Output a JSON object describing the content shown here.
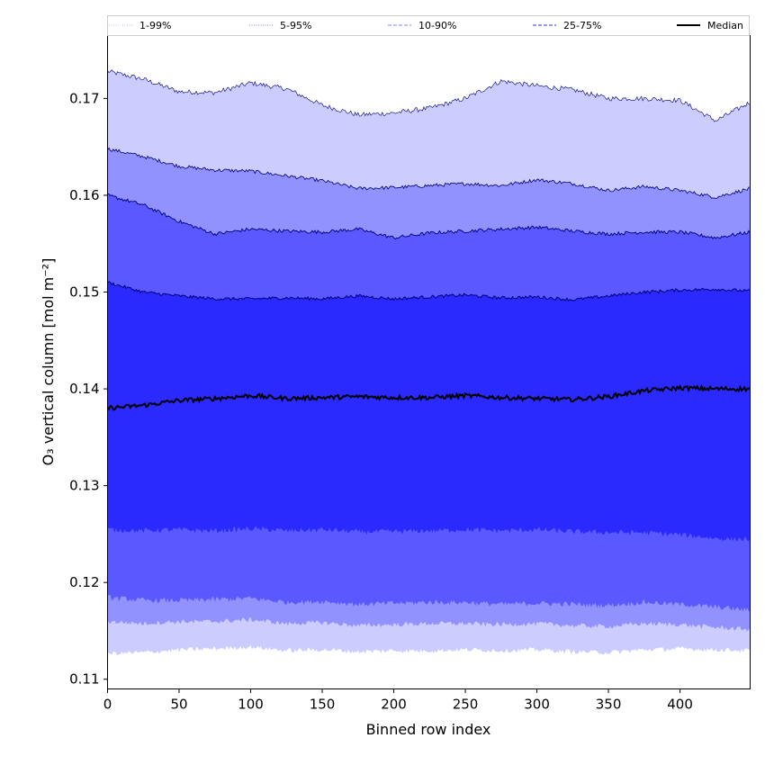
{
  "chart_data": {
    "type": "area",
    "title": "",
    "xlabel": "Binned row index",
    "ylabel": "O₃ vertical column [mol m⁻²]",
    "xlim": [
      0,
      449
    ],
    "ylim": [
      0.109,
      0.1765
    ],
    "x_ticks": [
      0,
      50,
      100,
      150,
      200,
      250,
      300,
      350,
      400
    ],
    "y_ticks": [
      0.11,
      0.12,
      0.13,
      0.14,
      0.15,
      0.16,
      0.17
    ],
    "y_tick_labels": [
      "0.11",
      "0.12",
      "0.13",
      "0.14",
      "0.15",
      "0.16",
      "0.17"
    ],
    "x_tick_labels": [
      "0",
      "50",
      "100",
      "150",
      "200",
      "250",
      "300",
      "350",
      "400"
    ],
    "grid": false,
    "legend_position": "top",
    "legend": [
      {
        "label": "1-99%",
        "style": "dotted",
        "color": "#ccccff"
      },
      {
        "label": "5-95%",
        "style": "dotted",
        "color": "#9999ff"
      },
      {
        "label": "10-90%",
        "style": "dashed",
        "color": "#9a9aff"
      },
      {
        "label": "25-75%",
        "style": "dashed",
        "color": "#5b5bff"
      },
      {
        "label": "Median",
        "style": "solid",
        "color": "#000000"
      }
    ],
    "x": [
      0,
      25,
      50,
      75,
      100,
      125,
      150,
      175,
      200,
      225,
      250,
      275,
      300,
      325,
      350,
      375,
      400,
      425,
      449
    ],
    "series": [
      {
        "name": "1-99% upper",
        "values": [
          0.1728,
          0.172,
          0.1707,
          0.1706,
          0.1716,
          0.171,
          0.1693,
          0.1683,
          0.1685,
          0.169,
          0.17,
          0.1718,
          0.1713,
          0.1709,
          0.17,
          0.17,
          0.1698,
          0.1677,
          0.1696
        ]
      },
      {
        "name": "5-95% upper",
        "values": [
          0.1648,
          0.164,
          0.163,
          0.1626,
          0.1625,
          0.162,
          0.1615,
          0.1607,
          0.1608,
          0.161,
          0.1612,
          0.161,
          0.1616,
          0.1612,
          0.1605,
          0.1609,
          0.1605,
          0.1598,
          0.1607
        ]
      },
      {
        "name": "10-90% upper",
        "values": [
          0.16,
          0.159,
          0.1573,
          0.156,
          0.1565,
          0.1563,
          0.1562,
          0.1565,
          0.1556,
          0.1561,
          0.1563,
          0.1565,
          0.1567,
          0.1563,
          0.156,
          0.1562,
          0.1562,
          0.1556,
          0.1562
        ]
      },
      {
        "name": "25-75% upper",
        "values": [
          0.151,
          0.15,
          0.1496,
          0.1493,
          0.1493,
          0.1494,
          0.1493,
          0.1496,
          0.1493,
          0.1495,
          0.1497,
          0.1494,
          0.1495,
          0.1492,
          0.1496,
          0.15,
          0.1502,
          0.1503,
          0.1501
        ]
      },
      {
        "name": "Median",
        "values": [
          0.138,
          0.1383,
          0.1388,
          0.139,
          0.1393,
          0.139,
          0.1391,
          0.1392,
          0.1391,
          0.1391,
          0.1393,
          0.1391,
          0.139,
          0.1389,
          0.1392,
          0.1398,
          0.1401,
          0.14,
          0.14
        ]
      },
      {
        "name": "25-75% lower",
        "values": [
          0.1255,
          0.1254,
          0.1255,
          0.1254,
          0.1256,
          0.1254,
          0.1255,
          0.1253,
          0.1253,
          0.1254,
          0.1255,
          0.1254,
          0.1255,
          0.1253,
          0.1252,
          0.1252,
          0.125,
          0.1246,
          0.1245
        ]
      },
      {
        "name": "10-90% lower",
        "values": [
          0.1185,
          0.1182,
          0.1182,
          0.1183,
          0.1184,
          0.118,
          0.1181,
          0.1178,
          0.1179,
          0.118,
          0.118,
          0.1178,
          0.1179,
          0.1178,
          0.1177,
          0.118,
          0.1178,
          0.1175,
          0.1172
        ]
      },
      {
        "name": "5-95% lower",
        "values": [
          0.116,
          0.1158,
          0.116,
          0.116,
          0.1162,
          0.1158,
          0.1159,
          0.1156,
          0.1157,
          0.1158,
          0.1158,
          0.1157,
          0.1158,
          0.1156,
          0.1155,
          0.1158,
          0.1157,
          0.1154,
          0.1152
        ]
      },
      {
        "name": "1-99% lower",
        "values": [
          0.1127,
          0.1128,
          0.1131,
          0.1132,
          0.1134,
          0.113,
          0.1131,
          0.1129,
          0.113,
          0.113,
          0.1131,
          0.113,
          0.1131,
          0.1129,
          0.1128,
          0.1131,
          0.1132,
          0.1131,
          0.113
        ]
      }
    ],
    "fill_colors": {
      "band_1_99": "#ccccff",
      "band_5_95": "#9292ff",
      "band_10_90": "#5959ff",
      "band_25_75": "#2a2aff",
      "median_line": "#000000",
      "outline": "#00007a"
    }
  }
}
